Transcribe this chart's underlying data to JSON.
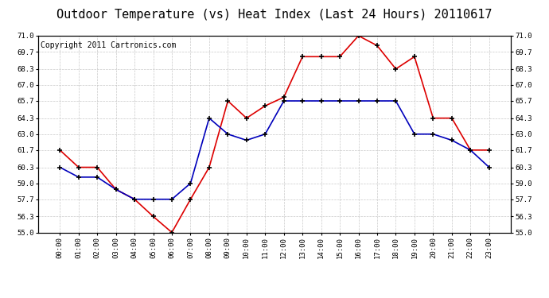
{
  "title": "Outdoor Temperature (vs) Heat Index (Last 24 Hours) 20110617",
  "copyright": "Copyright 2011 Cartronics.com",
  "x_labels": [
    "00:00",
    "01:00",
    "02:00",
    "03:00",
    "04:00",
    "05:00",
    "06:00",
    "07:00",
    "08:00",
    "09:00",
    "10:00",
    "11:00",
    "12:00",
    "13:00",
    "14:00",
    "15:00",
    "16:00",
    "17:00",
    "18:00",
    "19:00",
    "20:00",
    "21:00",
    "22:00",
    "23:00"
  ],
  "temp_red": [
    61.7,
    60.3,
    60.3,
    58.5,
    57.7,
    56.3,
    55.0,
    57.7,
    60.3,
    65.7,
    64.3,
    65.3,
    66.0,
    69.3,
    69.3,
    69.3,
    71.0,
    70.2,
    68.3,
    69.3,
    64.3,
    64.3,
    61.7,
    61.7
  ],
  "temp_blue": [
    60.3,
    59.5,
    59.5,
    58.5,
    57.7,
    57.7,
    57.7,
    59.0,
    64.3,
    63.0,
    62.5,
    63.0,
    65.7,
    65.7,
    65.7,
    65.7,
    65.7,
    65.7,
    65.7,
    63.0,
    63.0,
    62.5,
    61.7,
    60.3
  ],
  "ylim": [
    55.0,
    71.0
  ],
  "yticks": [
    55.0,
    56.3,
    57.7,
    59.0,
    60.3,
    61.7,
    63.0,
    64.3,
    65.7,
    67.0,
    68.3,
    69.7,
    71.0
  ],
  "red_color": "#dd0000",
  "blue_color": "#0000bb",
  "bg_color": "#ffffff",
  "grid_color": "#bbbbbb",
  "title_fontsize": 11,
  "copyright_fontsize": 7
}
